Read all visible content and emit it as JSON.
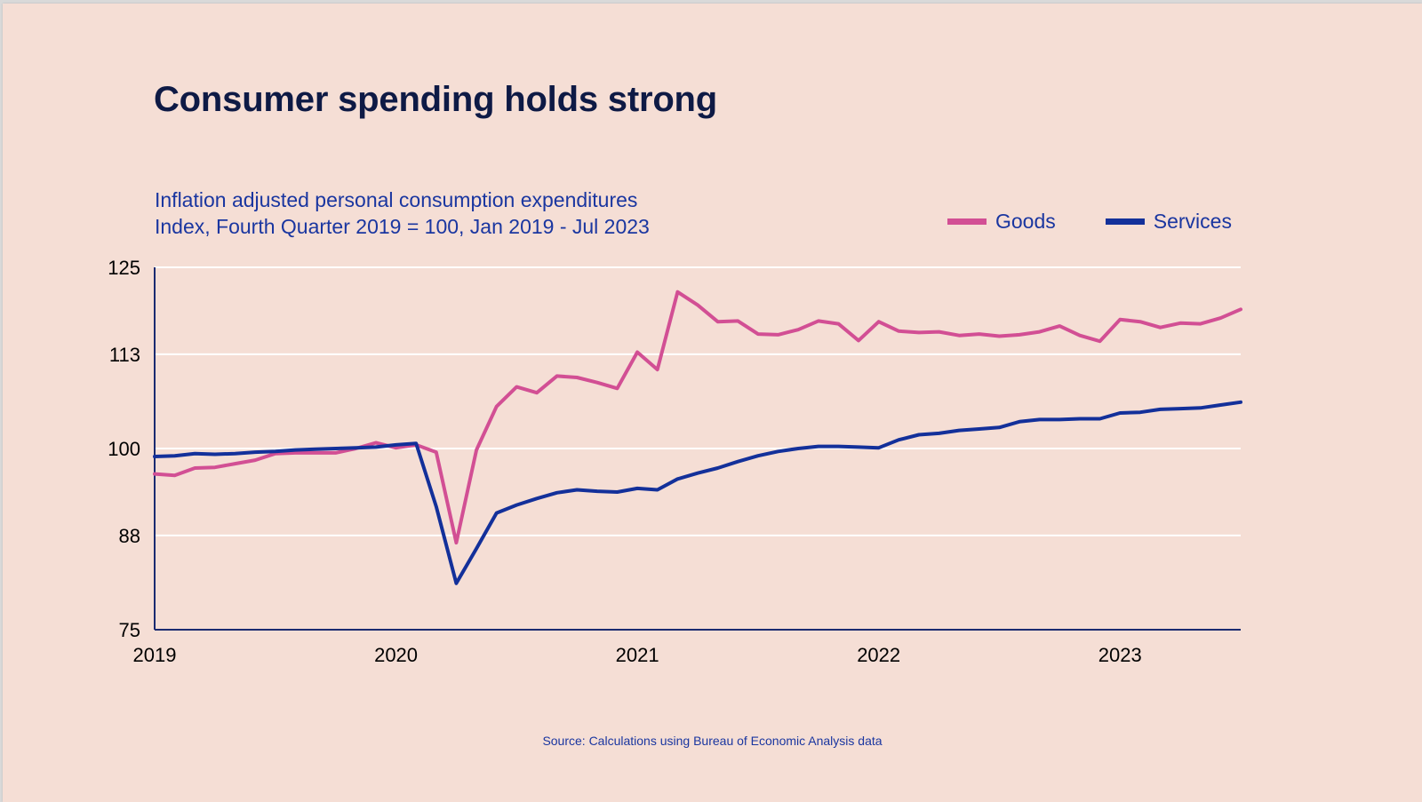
{
  "title": "Consumer spending holds strong",
  "subtitle_line1": "Inflation adjusted personal consumption expenditures",
  "subtitle_line2": "Index, Fourth Quarter 2019 = 100, Jan 2019 - Jul 2023",
  "source": "Source: Calculations using Bureau of Economic Analysis data",
  "colors": {
    "background": "#f5ded5",
    "goods": "#d24f94",
    "services": "#13309a",
    "axis": "#1a2a70",
    "grid": "#ffffff"
  },
  "chart_data": {
    "type": "line",
    "title": "Consumer spending holds strong",
    "xlabel": "",
    "ylabel": "",
    "x_start": "2019-01",
    "x_end": "2023-07",
    "x_frequency": "monthly",
    "xticks": [
      "2019",
      "2020",
      "2021",
      "2022",
      "2023"
    ],
    "yticks": [
      "75",
      "88",
      "100",
      "113",
      "125"
    ],
    "ylim": [
      75,
      125
    ],
    "grid": true,
    "legend": "top-right",
    "series": [
      {
        "name": "Goods",
        "color": "#d24f94",
        "values": [
          96.5,
          96.3,
          97.3,
          97.4,
          97.9,
          98.4,
          99.3,
          99.4,
          99.4,
          99.4,
          100.0,
          100.8,
          100.1,
          100.5,
          99.5,
          87.0,
          99.8,
          105.8,
          108.5,
          107.7,
          110.0,
          109.8,
          109.1,
          108.3,
          113.3,
          110.9,
          121.6,
          119.8,
          117.5,
          117.6,
          115.8,
          115.7,
          116.4,
          117.6,
          117.2,
          114.9,
          117.5,
          116.2,
          116.0,
          116.1,
          115.6,
          115.8,
          115.5,
          115.7,
          116.1,
          116.9,
          115.6,
          114.8,
          117.8,
          117.5,
          116.7,
          117.3,
          117.2,
          118.0,
          119.2
        ]
      },
      {
        "name": "Services",
        "color": "#13309a",
        "values": [
          98.9,
          99.0,
          99.3,
          99.2,
          99.3,
          99.5,
          99.6,
          99.8,
          99.9,
          100.0,
          100.1,
          100.2,
          100.5,
          100.7,
          92.0,
          81.4,
          86.2,
          91.1,
          92.2,
          93.1,
          93.9,
          94.3,
          94.1,
          94.0,
          94.5,
          94.3,
          95.8,
          96.6,
          97.3,
          98.2,
          99.0,
          99.6,
          100.0,
          100.3,
          100.3,
          100.2,
          100.1,
          101.2,
          101.9,
          102.1,
          102.5,
          102.7,
          102.9,
          103.7,
          104.0,
          104.0,
          104.1,
          104.1,
          104.9,
          105.0,
          105.4,
          105.5,
          105.6,
          106.0,
          106.4
        ]
      }
    ]
  }
}
